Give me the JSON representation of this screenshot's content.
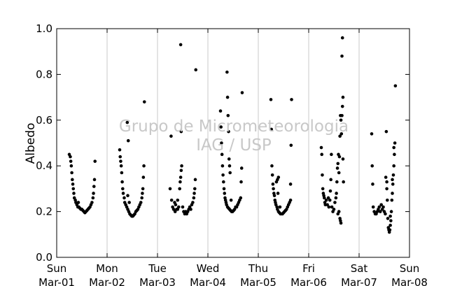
{
  "chart_data": {
    "type": "scatter",
    "title": "",
    "xlabel": "",
    "ylabel": "Albedo",
    "xlim": [
      "2015-03-01",
      "2015-03-08"
    ],
    "ylim": [
      0.0,
      1.0
    ],
    "grid": "vertical",
    "legend": "none",
    "x_ticks": [
      {
        "date": "2015-03-01",
        "day": "Sun",
        "label": "Mar-01"
      },
      {
        "date": "2015-03-02",
        "day": "Mon",
        "label": "Mar-02"
      },
      {
        "date": "2015-03-03",
        "day": "Tue",
        "label": "Mar-03"
      },
      {
        "date": "2015-03-04",
        "day": "Wed",
        "label": "Mar-04"
      },
      {
        "date": "2015-03-05",
        "day": "Thu",
        "label": "Mar-05"
      },
      {
        "date": "2015-03-06",
        "day": "Fri",
        "label": "Mar-06"
      },
      {
        "date": "2015-03-07",
        "day": "Sat",
        "label": "Mar-07"
      },
      {
        "date": "2015-03-08",
        "day": "Sun",
        "label": "Mar-08"
      }
    ],
    "y_ticks": [
      "0.0",
      "0.2",
      "0.4",
      "0.6",
      "0.8",
      "1.0"
    ],
    "watermark": [
      "Grupo de Micrometeorologia",
      "IAG / USP"
    ],
    "marker_color": "#000000",
    "days": [
      {
        "date": "2015-03-01",
        "points": [
          [
            0.25,
            0.45
          ],
          [
            0.27,
            0.44
          ],
          [
            0.28,
            0.42
          ],
          [
            0.29,
            0.4
          ],
          [
            0.3,
            0.37
          ],
          [
            0.31,
            0.34
          ],
          [
            0.32,
            0.32
          ],
          [
            0.33,
            0.3
          ],
          [
            0.34,
            0.28
          ],
          [
            0.35,
            0.26
          ],
          [
            0.37,
            0.25
          ],
          [
            0.38,
            0.24
          ],
          [
            0.4,
            0.23
          ],
          [
            0.42,
            0.22
          ],
          [
            0.44,
            0.22
          ],
          [
            0.46,
            0.215
          ],
          [
            0.48,
            0.21
          ],
          [
            0.5,
            0.21
          ],
          [
            0.52,
            0.205
          ],
          [
            0.54,
            0.2
          ],
          [
            0.56,
            0.195
          ],
          [
            0.58,
            0.2
          ],
          [
            0.6,
            0.205
          ],
          [
            0.62,
            0.21
          ],
          [
            0.64,
            0.215
          ],
          [
            0.66,
            0.22
          ],
          [
            0.68,
            0.23
          ],
          [
            0.7,
            0.24
          ],
          [
            0.72,
            0.26
          ],
          [
            0.73,
            0.28
          ],
          [
            0.74,
            0.31
          ],
          [
            0.75,
            0.34
          ],
          [
            0.76,
            0.42
          ],
          [
            0.43,
            0.24
          ]
        ]
      },
      {
        "date": "2015-03-02",
        "points": [
          [
            0.25,
            0.47
          ],
          [
            0.26,
            0.44
          ],
          [
            0.27,
            0.42
          ],
          [
            0.28,
            0.4
          ],
          [
            0.29,
            0.37
          ],
          [
            0.3,
            0.33
          ],
          [
            0.31,
            0.3
          ],
          [
            0.32,
            0.28
          ],
          [
            0.34,
            0.26
          ],
          [
            0.35,
            0.24
          ],
          [
            0.37,
            0.23
          ],
          [
            0.39,
            0.22
          ],
          [
            0.41,
            0.21
          ],
          [
            0.43,
            0.2
          ],
          [
            0.45,
            0.19
          ],
          [
            0.47,
            0.185
          ],
          [
            0.49,
            0.18
          ],
          [
            0.51,
            0.18
          ],
          [
            0.53,
            0.185
          ],
          [
            0.55,
            0.19
          ],
          [
            0.57,
            0.2
          ],
          [
            0.59,
            0.205
          ],
          [
            0.61,
            0.21
          ],
          [
            0.63,
            0.22
          ],
          [
            0.65,
            0.23
          ],
          [
            0.67,
            0.24
          ],
          [
            0.69,
            0.26
          ],
          [
            0.7,
            0.28
          ],
          [
            0.71,
            0.3
          ],
          [
            0.72,
            0.35
          ],
          [
            0.73,
            0.4
          ],
          [
            0.74,
            0.68
          ],
          [
            0.4,
            0.59
          ],
          [
            0.42,
            0.51
          ],
          [
            0.41,
            0.27
          ],
          [
            0.44,
            0.24
          ]
        ]
      },
      {
        "date": "2015-03-03",
        "points": [
          [
            0.25,
            0.3
          ],
          [
            0.27,
            0.53
          ],
          [
            0.28,
            0.25
          ],
          [
            0.3,
            0.22
          ],
          [
            0.32,
            0.21
          ],
          [
            0.34,
            0.24
          ],
          [
            0.36,
            0.23
          ],
          [
            0.38,
            0.21
          ],
          [
            0.4,
            0.21
          ],
          [
            0.42,
            0.22
          ],
          [
            0.44,
            0.3
          ],
          [
            0.45,
            0.33
          ],
          [
            0.46,
            0.35
          ],
          [
            0.47,
            0.38
          ],
          [
            0.48,
            0.4
          ],
          [
            0.47,
            0.55
          ],
          [
            0.46,
            0.93
          ],
          [
            0.5,
            0.22
          ],
          [
            0.52,
            0.2
          ],
          [
            0.54,
            0.19
          ],
          [
            0.56,
            0.2
          ],
          [
            0.58,
            0.19
          ],
          [
            0.6,
            0.2
          ],
          [
            0.62,
            0.21
          ],
          [
            0.64,
            0.22
          ],
          [
            0.66,
            0.21
          ],
          [
            0.68,
            0.23
          ],
          [
            0.7,
            0.24
          ],
          [
            0.72,
            0.26
          ],
          [
            0.73,
            0.28
          ],
          [
            0.74,
            0.3
          ],
          [
            0.75,
            0.34
          ],
          [
            0.76,
            0.82
          ],
          [
            0.4,
            0.25
          ],
          [
            0.35,
            0.2
          ]
        ]
      },
      {
        "date": "2015-03-04",
        "points": [
          [
            0.25,
            0.64
          ],
          [
            0.26,
            0.57
          ],
          [
            0.27,
            0.5
          ],
          [
            0.28,
            0.45
          ],
          [
            0.29,
            0.4
          ],
          [
            0.3,
            0.36
          ],
          [
            0.31,
            0.33
          ],
          [
            0.32,
            0.3
          ],
          [
            0.33,
            0.28
          ],
          [
            0.34,
            0.26
          ],
          [
            0.35,
            0.25
          ],
          [
            0.36,
            0.24
          ],
          [
            0.37,
            0.23
          ],
          [
            0.39,
            0.22
          ],
          [
            0.41,
            0.215
          ],
          [
            0.43,
            0.21
          ],
          [
            0.45,
            0.205
          ],
          [
            0.47,
            0.2
          ],
          [
            0.49,
            0.2
          ],
          [
            0.51,
            0.205
          ],
          [
            0.53,
            0.21
          ],
          [
            0.55,
            0.22
          ],
          [
            0.57,
            0.22
          ],
          [
            0.59,
            0.23
          ],
          [
            0.61,
            0.24
          ],
          [
            0.63,
            0.25
          ],
          [
            0.65,
            0.26
          ],
          [
            0.66,
            0.33
          ],
          [
            0.67,
            0.39
          ],
          [
            0.68,
            0.72
          ],
          [
            0.38,
            0.81
          ],
          [
            0.39,
            0.7
          ],
          [
            0.4,
            0.62
          ],
          [
            0.41,
            0.55
          ],
          [
            0.42,
            0.43
          ],
          [
            0.43,
            0.4
          ],
          [
            0.44,
            0.37
          ],
          [
            0.46,
            0.25
          ]
        ]
      },
      {
        "date": "2015-03-05",
        "points": [
          [
            0.25,
            0.69
          ],
          [
            0.26,
            0.56
          ],
          [
            0.27,
            0.4
          ],
          [
            0.28,
            0.36
          ],
          [
            0.29,
            0.32
          ],
          [
            0.3,
            0.3
          ],
          [
            0.31,
            0.28
          ],
          [
            0.32,
            0.27
          ],
          [
            0.33,
            0.25
          ],
          [
            0.34,
            0.24
          ],
          [
            0.35,
            0.23
          ],
          [
            0.37,
            0.22
          ],
          [
            0.38,
            0.21
          ],
          [
            0.4,
            0.2
          ],
          [
            0.42,
            0.195
          ],
          [
            0.44,
            0.19
          ],
          [
            0.46,
            0.19
          ],
          [
            0.48,
            0.19
          ],
          [
            0.5,
            0.195
          ],
          [
            0.52,
            0.2
          ],
          [
            0.54,
            0.205
          ],
          [
            0.56,
            0.21
          ],
          [
            0.58,
            0.22
          ],
          [
            0.6,
            0.23
          ],
          [
            0.62,
            0.24
          ],
          [
            0.64,
            0.25
          ],
          [
            0.66,
            0.69
          ],
          [
            0.65,
            0.49
          ],
          [
            0.64,
            0.32
          ],
          [
            0.4,
            0.35
          ],
          [
            0.38,
            0.34
          ],
          [
            0.36,
            0.33
          ],
          [
            0.39,
            0.28
          ],
          [
            0.43,
            0.22
          ]
        ]
      },
      {
        "date": "2015-03-06",
        "points": [
          [
            0.25,
            0.48
          ],
          [
            0.26,
            0.45
          ],
          [
            0.27,
            0.36
          ],
          [
            0.28,
            0.3
          ],
          [
            0.29,
            0.28
          ],
          [
            0.3,
            0.27
          ],
          [
            0.31,
            0.26
          ],
          [
            0.32,
            0.24
          ],
          [
            0.33,
            0.23
          ],
          [
            0.35,
            0.25
          ],
          [
            0.37,
            0.23
          ],
          [
            0.39,
            0.26
          ],
          [
            0.4,
            0.22
          ],
          [
            0.42,
            0.25
          ],
          [
            0.43,
            0.29
          ],
          [
            0.44,
            0.34
          ],
          [
            0.45,
            0.45
          ],
          [
            0.46,
            0.22
          ],
          [
            0.48,
            0.2
          ],
          [
            0.5,
            0.21
          ],
          [
            0.52,
            0.24
          ],
          [
            0.54,
            0.26
          ],
          [
            0.55,
            0.28
          ],
          [
            0.56,
            0.33
          ],
          [
            0.57,
            0.39
          ],
          [
            0.58,
            0.41
          ],
          [
            0.59,
            0.45
          ],
          [
            0.6,
            0.37
          ],
          [
            0.61,
            0.44
          ],
          [
            0.62,
            0.53
          ],
          [
            0.63,
            0.62
          ],
          [
            0.64,
            0.6
          ],
          [
            0.65,
            0.54
          ],
          [
            0.66,
            0.62
          ],
          [
            0.67,
            0.66
          ],
          [
            0.68,
            0.7
          ],
          [
            0.66,
            0.88
          ],
          [
            0.67,
            0.96
          ],
          [
            0.62,
            0.17
          ],
          [
            0.63,
            0.16
          ],
          [
            0.64,
            0.15
          ],
          [
            0.6,
            0.2
          ],
          [
            0.58,
            0.19
          ],
          [
            0.68,
            0.43
          ],
          [
            0.69,
            0.33
          ]
        ]
      },
      {
        "date": "2015-03-07",
        "points": [
          [
            0.25,
            0.54
          ],
          [
            0.26,
            0.4
          ],
          [
            0.27,
            0.32
          ],
          [
            0.28,
            0.22
          ],
          [
            0.3,
            0.2
          ],
          [
            0.32,
            0.19
          ],
          [
            0.34,
            0.19
          ],
          [
            0.36,
            0.2
          ],
          [
            0.38,
            0.21
          ],
          [
            0.4,
            0.22
          ],
          [
            0.42,
            0.2
          ],
          [
            0.44,
            0.23
          ],
          [
            0.46,
            0.21
          ],
          [
            0.48,
            0.22
          ],
          [
            0.5,
            0.2
          ],
          [
            0.52,
            0.19
          ],
          [
            0.54,
            0.55
          ],
          [
            0.55,
            0.3
          ],
          [
            0.56,
            0.25
          ],
          [
            0.57,
            0.17
          ],
          [
            0.58,
            0.13
          ],
          [
            0.59,
            0.12
          ],
          [
            0.6,
            0.11
          ],
          [
            0.61,
            0.12
          ],
          [
            0.62,
            0.14
          ],
          [
            0.63,
            0.16
          ],
          [
            0.64,
            0.2
          ],
          [
            0.65,
            0.25
          ],
          [
            0.66,
            0.28
          ],
          [
            0.67,
            0.32
          ],
          [
            0.68,
            0.36
          ],
          [
            0.69,
            0.4
          ],
          [
            0.7,
            0.45
          ],
          [
            0.71,
            0.5
          ],
          [
            0.72,
            0.75
          ],
          [
            0.53,
            0.35
          ],
          [
            0.55,
            0.33
          ],
          [
            0.62,
            0.18
          ],
          [
            0.66,
            0.34
          ],
          [
            0.69,
            0.48
          ]
        ]
      }
    ]
  }
}
